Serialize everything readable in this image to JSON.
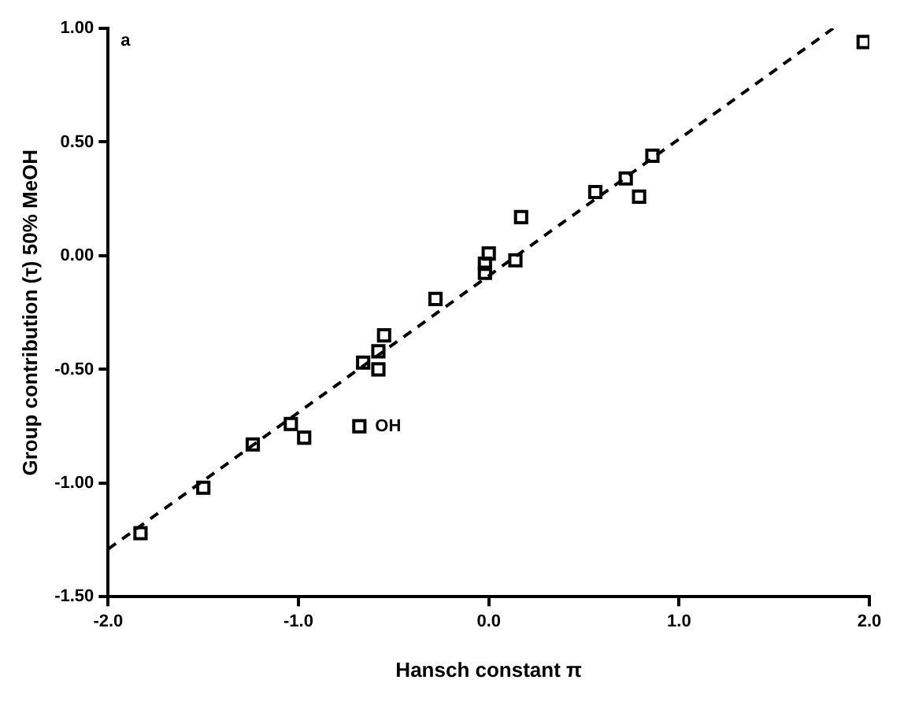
{
  "chart_data": {
    "type": "scatter",
    "xlabel": "Hansch constant π",
    "ylabel": "Group contribution (τ) 50% MeOH",
    "x": [
      -1.83,
      -1.5,
      -1.24,
      -1.04,
      -0.97,
      -0.68,
      -0.66,
      -0.58,
      -0.58,
      -0.55,
      -0.28,
      -0.02,
      -0.02,
      0.0,
      0.14,
      0.17,
      0.56,
      0.72,
      0.79,
      0.86,
      1.97
    ],
    "series": [
      {
        "color": "#000000",
        "marker": "square",
        "values": [
          -1.22,
          -1.02,
          -0.83,
          -0.74,
          -0.8,
          -0.75,
          -0.47,
          -0.5,
          -0.42,
          -0.35,
          -0.19,
          -0.075,
          -0.035,
          0.01,
          -0.02,
          0.17,
          0.28,
          0.34,
          0.26,
          0.44,
          0.94
        ]
      },
      {
        "type": "line",
        "color": "#000000",
        "line_style": "dashed",
        "marker": "none",
        "x": [
          -2.0,
          1.81
        ],
        "values": [
          -1.29,
          1.0
        ]
      }
    ],
    "xlim": [
      -2.0,
      2.0
    ],
    "ylim": [
      -1.5,
      1.0
    ],
    "xticks": [
      {
        "value": -2,
        "label": "-2.0"
      },
      {
        "value": -1,
        "label": "-1.0"
      },
      {
        "value": 0,
        "label": "0.0"
      },
      {
        "value": 1,
        "label": "1.0"
      },
      {
        "value": 2,
        "label": "2.0"
      }
    ],
    "yticks": [
      {
        "value": -1.5,
        "label": "-1.50"
      },
      {
        "value": -1,
        "label": "-1.00"
      },
      {
        "value": -0.5,
        "label": "-0.50"
      },
      {
        "value": 0,
        "label": "0.00"
      },
      {
        "value": 0.5,
        "label": "0.50"
      },
      {
        "value": 1,
        "label": "1.00"
      }
    ],
    "grid": false,
    "legend": false,
    "annotations": [
      "a",
      {
        "text": "OH",
        "x": -0.68,
        "y": -0.75
      }
    ]
  }
}
